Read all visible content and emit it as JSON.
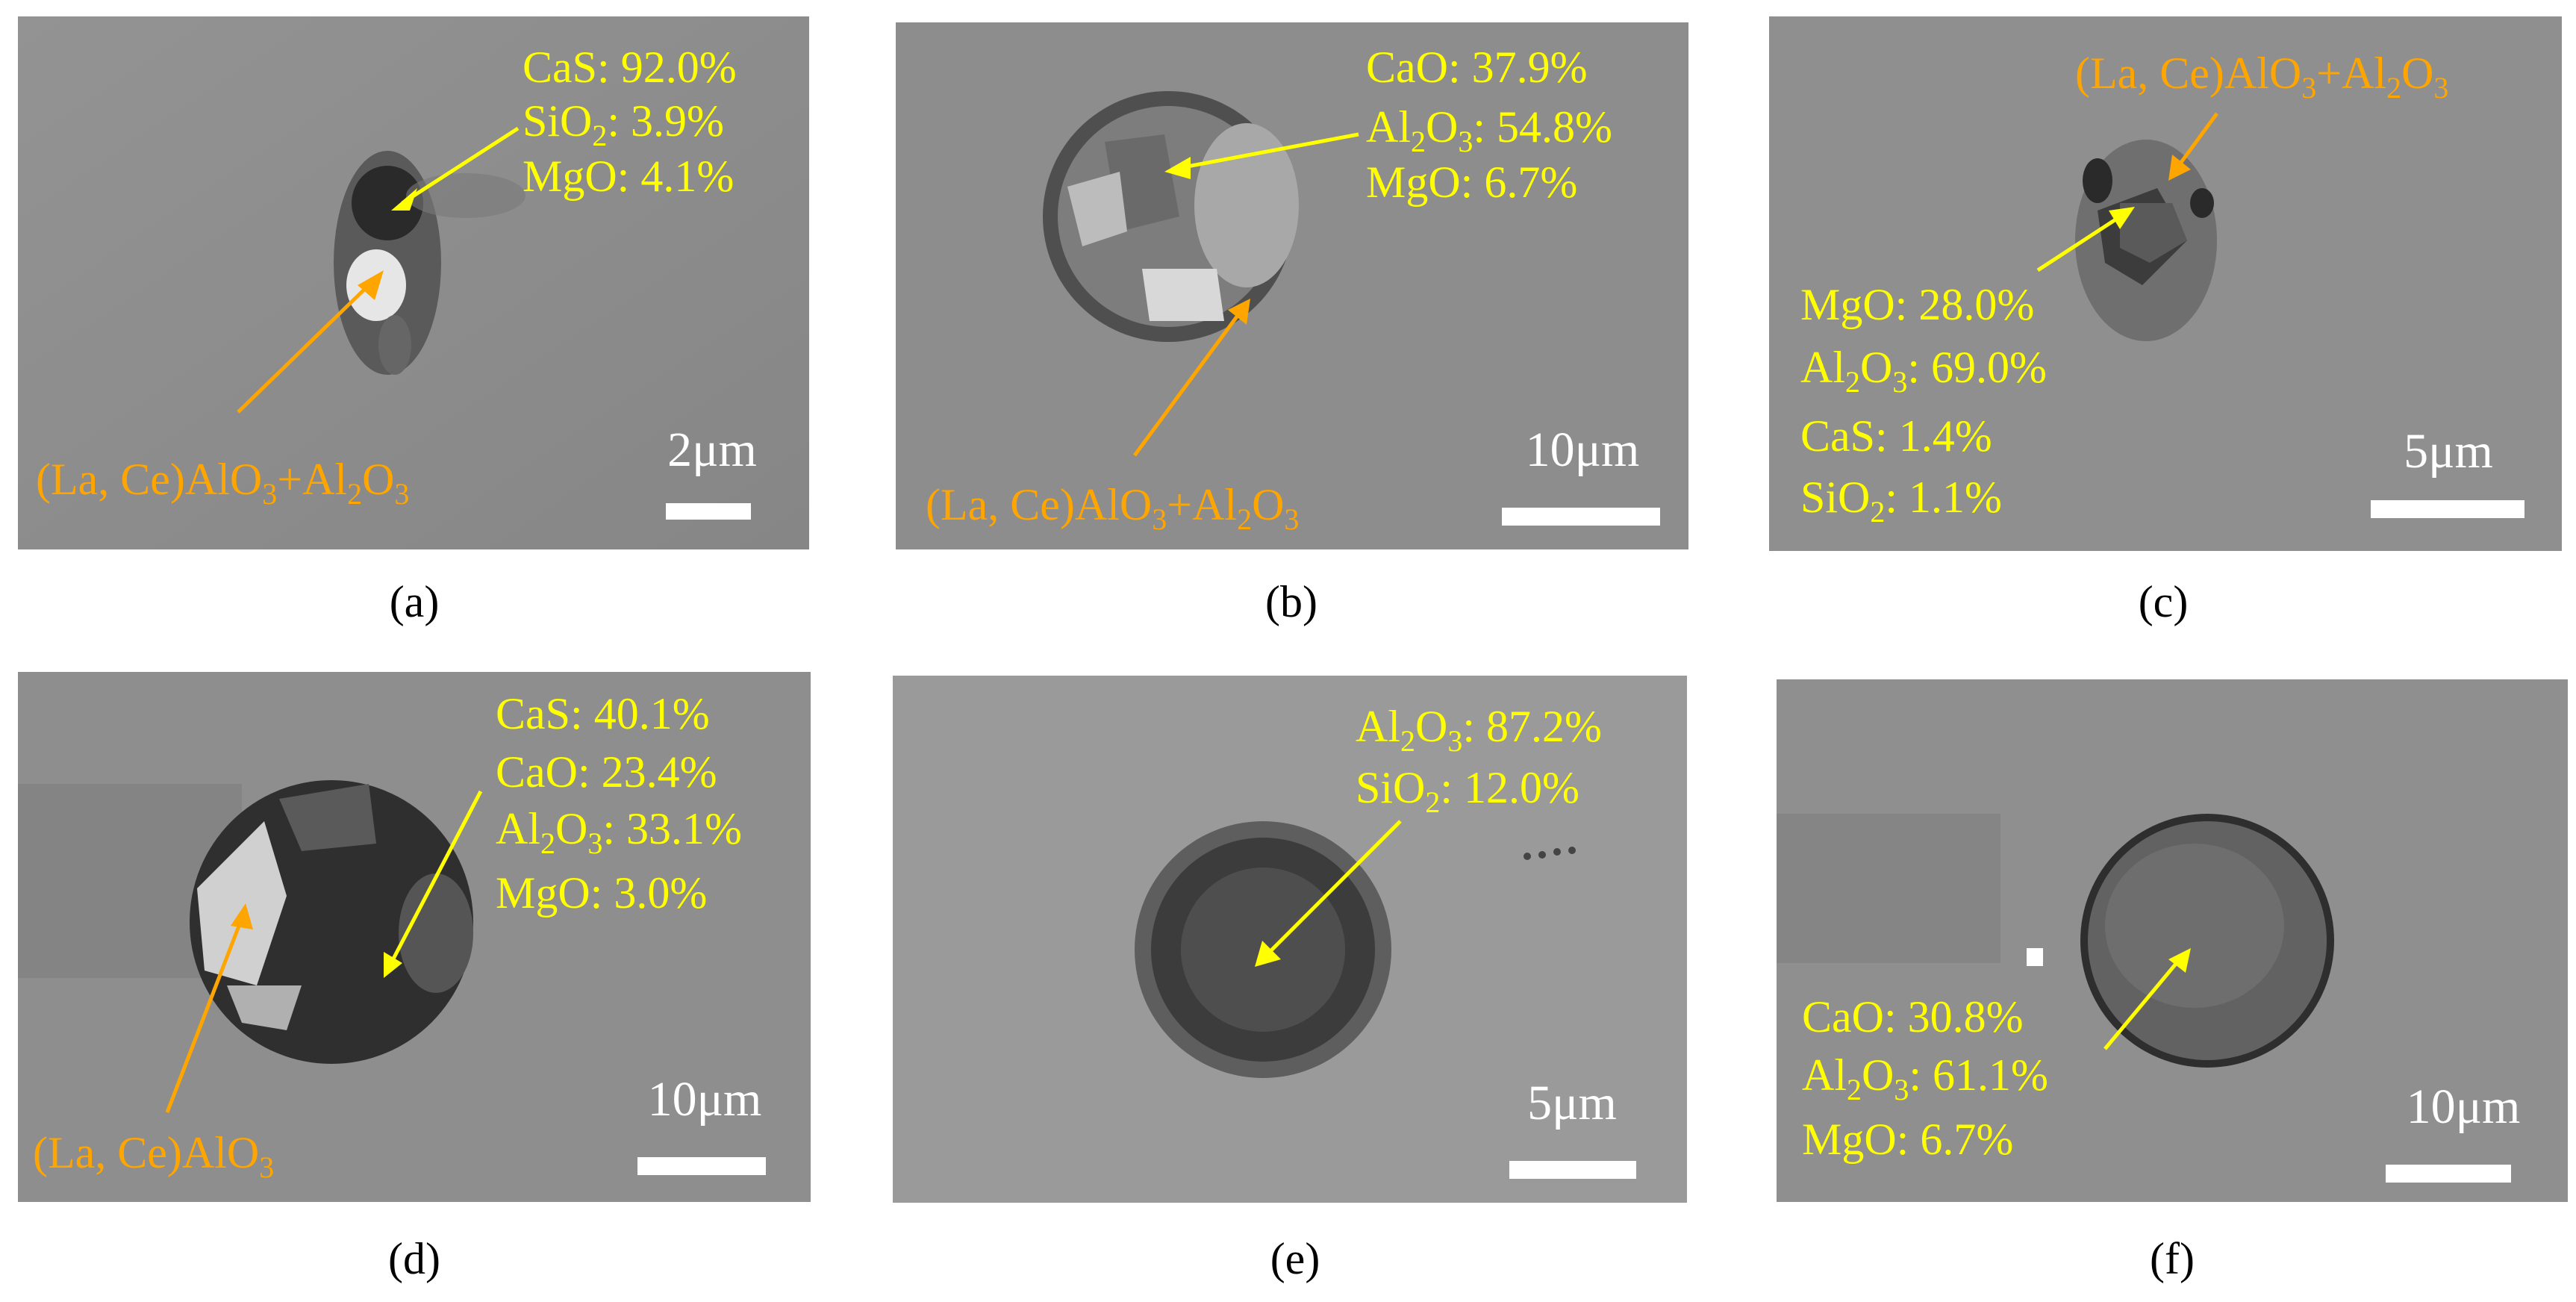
{
  "figure": {
    "panels": [
      {
        "caption": "(a)",
        "scale_bar": "2μm",
        "yellow_labels": [
          "CaS: 92.0%",
          "SiO2: 3.9%",
          "MgO: 4.1%"
        ],
        "orange_label": "(La, Ce)AlO3+Al2O3"
      },
      {
        "caption": "(b)",
        "scale_bar": "10μm",
        "yellow_labels": [
          "CaO: 37.9%",
          "Al2O3: 54.8%",
          "MgO: 6.7%"
        ],
        "orange_label": "(La, Ce)AlO3+Al2O3"
      },
      {
        "caption": "(c)",
        "scale_bar": "5μm",
        "yellow_labels": [
          "MgO: 28.0%",
          "Al2O3: 69.0%",
          "CaS: 1.4%",
          "SiO2: 1.1%"
        ],
        "orange_label": "(La, Ce)AlO3+Al2O3"
      },
      {
        "caption": "(d)",
        "scale_bar": "10μm",
        "yellow_labels": [
          "CaS: 40.1%",
          "CaO: 23.4%",
          "Al2O3: 33.1%",
          "MgO: 3.0%"
        ],
        "orange_label": "(La, Ce)AlO3"
      },
      {
        "caption": "(e)",
        "scale_bar": "5μm",
        "yellow_labels": [
          "Al2O3: 87.2%",
          "SiO2: 12.0%"
        ]
      },
      {
        "caption": "(f)",
        "scale_bar": "10μm",
        "yellow_labels": [
          "CaO: 30.8%",
          "Al2O3: 61.1%",
          "MgO: 6.7%"
        ]
      }
    ],
    "colors": {
      "annotation_yellow": "#ffff00",
      "annotation_orange": "#ffa500",
      "background_gray": "#8a8a8a"
    }
  }
}
